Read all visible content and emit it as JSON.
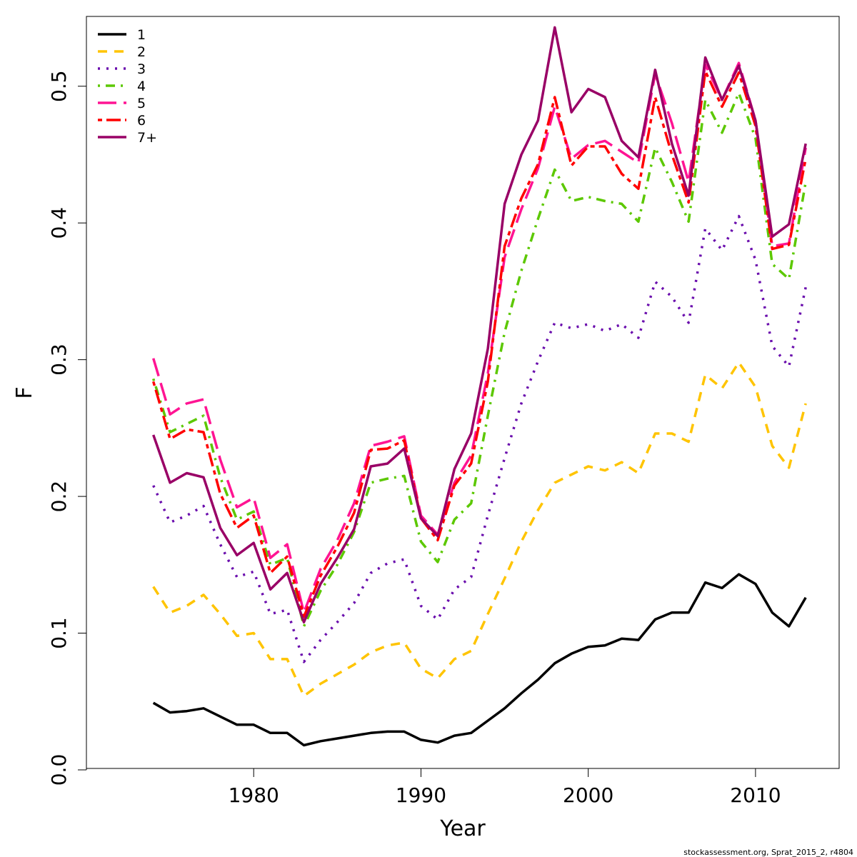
{
  "chart_data": {
    "type": "line",
    "title": "",
    "xlabel": "Year",
    "ylabel": "F",
    "xlim": [
      1970,
      2015
    ],
    "ylim": [
      0.0,
      0.55
    ],
    "x_ticks": [
      1980,
      1990,
      2000,
      2010
    ],
    "y_ticks": [
      0.0,
      0.1,
      0.2,
      0.3,
      0.4,
      0.5
    ],
    "y_tick_labels": [
      "0.0",
      "0.1",
      "0.2",
      "0.3",
      "0.4",
      "0.5"
    ],
    "grid": false,
    "legend_position": "top-left",
    "x": [
      1974,
      1975,
      1976,
      1977,
      1978,
      1979,
      1980,
      1981,
      1982,
      1983,
      1984,
      1985,
      1986,
      1987,
      1988,
      1989,
      1990,
      1991,
      1992,
      1993,
      1994,
      1995,
      1996,
      1997,
      1998,
      1999,
      2000,
      2001,
      2002,
      2003,
      2004,
      2005,
      2006,
      2007,
      2008,
      2009,
      2010,
      2011,
      2012,
      2013
    ],
    "series": [
      {
        "name": "1",
        "color": "#000000",
        "dash": "solid",
        "values": [
          0.049,
          0.042,
          0.043,
          0.045,
          0.039,
          0.033,
          0.033,
          0.027,
          0.027,
          0.018,
          0.021,
          0.023,
          0.025,
          0.027,
          0.028,
          0.028,
          0.022,
          0.02,
          0.025,
          0.027,
          0.036,
          0.045,
          0.056,
          0.066,
          0.078,
          0.085,
          0.09,
          0.091,
          0.096,
          0.095,
          0.11,
          0.115,
          0.115,
          0.137,
          0.133,
          0.143,
          0.136,
          0.115,
          0.105,
          0.126
        ]
      },
      {
        "name": "2",
        "color": "#ffc400",
        "dash": "dashed",
        "values": [
          0.134,
          0.115,
          0.12,
          0.128,
          0.114,
          0.098,
          0.1,
          0.081,
          0.081,
          0.054,
          0.063,
          0.07,
          0.077,
          0.086,
          0.091,
          0.093,
          0.074,
          0.067,
          0.081,
          0.087,
          0.114,
          0.14,
          0.167,
          0.19,
          0.21,
          0.216,
          0.222,
          0.219,
          0.225,
          0.217,
          0.246,
          0.246,
          0.24,
          0.289,
          0.279,
          0.298,
          0.28,
          0.237,
          0.221,
          0.268
        ]
      },
      {
        "name": "3",
        "color": "#6a0dad",
        "dash": "dotted",
        "values": [
          0.208,
          0.181,
          0.186,
          0.193,
          0.165,
          0.141,
          0.145,
          0.114,
          0.117,
          0.079,
          0.095,
          0.108,
          0.122,
          0.144,
          0.151,
          0.154,
          0.12,
          0.11,
          0.132,
          0.141,
          0.186,
          0.228,
          0.268,
          0.299,
          0.327,
          0.323,
          0.326,
          0.321,
          0.326,
          0.316,
          0.357,
          0.346,
          0.327,
          0.396,
          0.38,
          0.405,
          0.373,
          0.31,
          0.295,
          0.353
        ]
      },
      {
        "name": "4",
        "color": "#5cc800",
        "dash": "dotdash",
        "values": [
          0.286,
          0.247,
          0.253,
          0.259,
          0.214,
          0.183,
          0.189,
          0.15,
          0.155,
          0.105,
          0.131,
          0.15,
          0.174,
          0.21,
          0.213,
          0.215,
          0.167,
          0.152,
          0.183,
          0.195,
          0.259,
          0.32,
          0.365,
          0.403,
          0.439,
          0.416,
          0.419,
          0.416,
          0.414,
          0.401,
          0.455,
          0.43,
          0.401,
          0.49,
          0.466,
          0.495,
          0.462,
          0.37,
          0.359,
          0.43
        ]
      },
      {
        "name": "5",
        "color": "#ff1493",
        "dash": "longdash",
        "values": [
          0.301,
          0.26,
          0.268,
          0.271,
          0.227,
          0.192,
          0.199,
          0.155,
          0.165,
          0.115,
          0.147,
          0.168,
          0.195,
          0.237,
          0.24,
          0.244,
          0.186,
          0.172,
          0.21,
          0.23,
          0.29,
          0.375,
          0.41,
          0.44,
          0.485,
          0.447,
          0.457,
          0.46,
          0.452,
          0.444,
          0.509,
          0.473,
          0.43,
          0.516,
          0.49,
          0.517,
          0.475,
          0.383,
          0.385,
          0.455
        ]
      },
      {
        "name": "6",
        "color": "#ff0000",
        "dash": "twodash",
        "values": [
          0.284,
          0.242,
          0.249,
          0.247,
          0.202,
          0.177,
          0.186,
          0.144,
          0.156,
          0.112,
          0.142,
          0.163,
          0.188,
          0.234,
          0.235,
          0.241,
          0.184,
          0.168,
          0.208,
          0.224,
          0.284,
          0.383,
          0.418,
          0.443,
          0.492,
          0.442,
          0.456,
          0.456,
          0.436,
          0.425,
          0.492,
          0.45,
          0.415,
          0.511,
          0.485,
          0.51,
          0.471,
          0.381,
          0.384,
          0.447
        ]
      },
      {
        "name": "7+",
        "color": "#990066",
        "dash": "solid",
        "values": [
          0.245,
          0.21,
          0.217,
          0.214,
          0.177,
          0.157,
          0.166,
          0.132,
          0.144,
          0.108,
          0.136,
          0.155,
          0.176,
          0.222,
          0.224,
          0.235,
          0.184,
          0.171,
          0.22,
          0.246,
          0.308,
          0.414,
          0.45,
          0.475,
          0.543,
          0.481,
          0.498,
          0.492,
          0.46,
          0.448,
          0.512,
          0.458,
          0.42,
          0.521,
          0.49,
          0.515,
          0.475,
          0.39,
          0.399,
          0.458
        ]
      }
    ]
  },
  "footer_text": "stockassessment.org, Sprat_2015_2, r4804"
}
